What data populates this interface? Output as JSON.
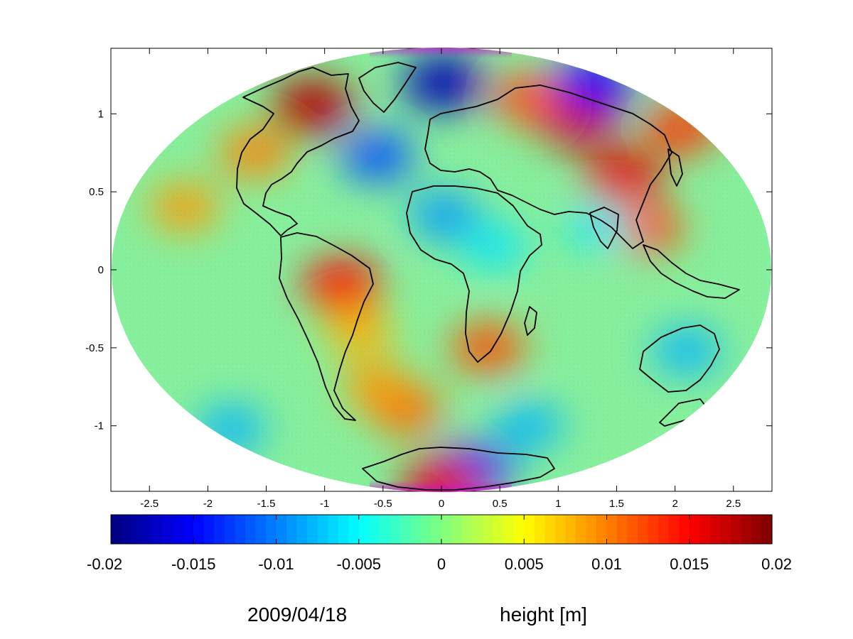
{
  "chart_data": {
    "type": "heatmap",
    "projection": "Hammer-Aitoff (whole globe)",
    "title": "",
    "xlabel": "",
    "ylabel": "",
    "xlim": [
      -2.83,
      2.83
    ],
    "ylim": [
      -1.42,
      1.42
    ],
    "x_ticks": [
      -2.5,
      -2,
      -1.5,
      -1,
      -0.5,
      0,
      0.5,
      1,
      1.5,
      2,
      2.5
    ],
    "x_tick_labels": [
      "-2.5",
      "-2",
      "-1.5",
      "-1",
      "-0.5",
      "0",
      "0.5",
      "1",
      "1.5",
      "2",
      "2.5"
    ],
    "y_ticks": [
      1,
      0.5,
      0,
      -0.5,
      -1
    ],
    "y_tick_labels": [
      "1",
      "0.5",
      "0",
      "-0.5",
      "-1"
    ],
    "grid": false,
    "colormap": "jet",
    "colorbar": {
      "placement": "bottom",
      "range": [
        -0.02,
        0.02
      ],
      "ticks": [
        -0.02,
        -0.015,
        -0.01,
        -0.005,
        0,
        0.005,
        0.01,
        0.015,
        0.02
      ],
      "tick_labels": [
        "-0.02",
        "-0.015",
        "-0.01",
        "-0.005",
        "0",
        "0.005",
        "0.01",
        "0.015",
        "0.02"
      ],
      "unit_label": "height [m]"
    },
    "field_features": [
      {
        "x": -1.1,
        "y": 1.05,
        "value": 0.018
      },
      {
        "x": 1.15,
        "y": 0.97,
        "value": 0.017
      },
      {
        "x": 0.75,
        "y": 1.1,
        "value": 0.012
      },
      {
        "x": 1.55,
        "y": 0.6,
        "value": 0.016
      },
      {
        "x": 1.75,
        "y": 0.27,
        "value": 0.012
      },
      {
        "x": 2.05,
        "y": 0.91,
        "value": 0.013
      },
      {
        "x": -0.85,
        "y": -0.1,
        "value": 0.015
      },
      {
        "x": 0.4,
        "y": -0.5,
        "value": 0.012
      },
      {
        "x": -0.3,
        "y": -0.9,
        "value": 0.011
      },
      {
        "x": -1.6,
        "y": 0.75,
        "value": 0.01
      },
      {
        "x": -2.2,
        "y": 0.4,
        "value": 0.009
      },
      {
        "x": -0.55,
        "y": -0.75,
        "value": 0.009
      },
      {
        "x": -0.7,
        "y": -0.4,
        "value": 0.008
      },
      {
        "x": 0.02,
        "y": 1.2,
        "value": -0.018
      },
      {
        "x": 1.3,
        "y": 1.2,
        "value": -0.015
      },
      {
        "x": -0.55,
        "y": 0.73,
        "value": -0.012
      },
      {
        "x": 0.02,
        "y": 0.35,
        "value": -0.009
      },
      {
        "x": 0.3,
        "y": -1.27,
        "value": -0.013
      },
      {
        "x": 1.35,
        "y": 0.28,
        "value": -0.006
      },
      {
        "x": 2.1,
        "y": -0.52,
        "value": -0.008
      },
      {
        "x": -1.8,
        "y": -1.02,
        "value": -0.008
      },
      {
        "x": 0.75,
        "y": -1.0,
        "value": -0.008
      },
      {
        "x": 0.45,
        "y": 0.15,
        "value": -0.006
      },
      {
        "x": 0.0,
        "y": -1.38,
        "value": 0.016
      }
    ],
    "date_label": "2009/04/18"
  }
}
